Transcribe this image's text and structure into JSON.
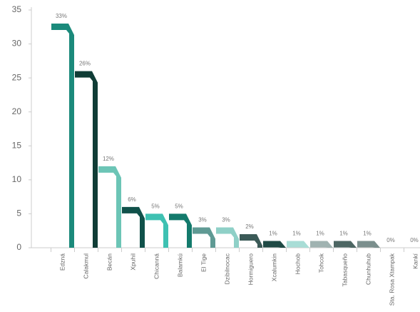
{
  "chart_data": {
    "type": "bar",
    "categories": [
      "Edzná",
      "Calakmul",
      "Becán",
      "Xpuhil",
      "Chicanná",
      "Balamkú",
      "El Tige",
      "Dzibilnocac",
      "Hormiguero",
      "Xcalumkin",
      "Hochob",
      "Tohcok",
      "Tabasqueño",
      "Chunhuhub",
      "Sta. Rosa Xtampak",
      "Kankí"
    ],
    "values": [
      33,
      26,
      12,
      6,
      5,
      5,
      3,
      3,
      2,
      1,
      1,
      1,
      1,
      1,
      0,
      0
    ],
    "value_labels": [
      "33%",
      "26%",
      "12%",
      "6%",
      "5%",
      "5%",
      "3%",
      "3%",
      "2%",
      "1%",
      "1%",
      "1%",
      "1%",
      "1%",
      "0%",
      "0%"
    ],
    "colors": [
      "#1b8a7b",
      "#103d36",
      "#6cc5b6",
      "#10514a",
      "#3ec1b2",
      "#137a6c",
      "#5f9a94",
      "#8fd0c7",
      "#3b5a57",
      "#1f4a45",
      "#a8ddd6",
      "#a0b3b1",
      "#4d6663",
      "#7b8f8d",
      "#b0b0b0",
      "#b0b0b0"
    ],
    "ylim": [
      0,
      35
    ],
    "yticks": [
      0,
      5,
      10,
      15,
      20,
      25,
      30,
      35
    ],
    "grid": false
  }
}
